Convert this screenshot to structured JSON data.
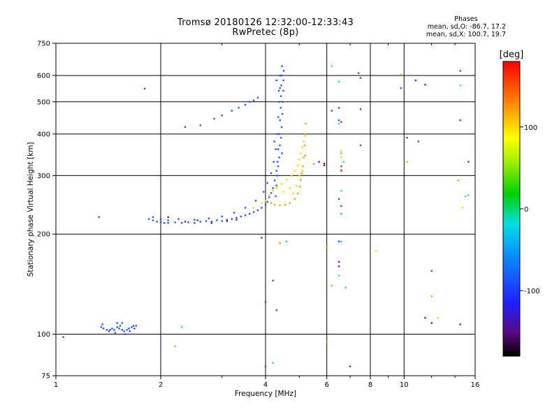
{
  "title": {
    "line1": "Tromsø 20180126 12:32:00-12:33:43",
    "line2": "RwPretec (8p)"
  },
  "phase_stats": {
    "heading": "Phases",
    "line_o": "mean, sd,O: -86.7, 17.2",
    "line_x": "mean, sd,X: 100.7, 19.7"
  },
  "colorbar": {
    "label": "[deg]",
    "ticks": [
      "100",
      "0",
      "-100"
    ],
    "range": [
      -180,
      180
    ]
  },
  "chart_data": {
    "type": "scatter",
    "xlabel": "Frequency [MHz]",
    "ylabel": "Stationary phase Virtual Height [km]",
    "xscale": "log",
    "yscale": "log",
    "xlim": [
      1,
      16
    ],
    "ylim": [
      75,
      750
    ],
    "xticks": [
      1,
      2,
      4,
      6,
      8,
      10,
      16
    ],
    "xtick_labels": [
      "1",
      "2",
      "4",
      "6",
      "8",
      "10",
      "16"
    ],
    "xminor": [
      3,
      5,
      7,
      9,
      12,
      14
    ],
    "yticks": [
      75,
      100,
      200,
      300,
      400,
      500,
      600,
      750
    ],
    "ytick_labels": [
      "75",
      "100",
      "200",
      "300",
      "400",
      "500",
      "600",
      "750"
    ],
    "grid": true,
    "series": [
      {
        "color": "#1f56ff",
        "points": [
          [
            1.35,
            105
          ],
          [
            1.37,
            104
          ],
          [
            1.4,
            103
          ],
          [
            1.43,
            103
          ],
          [
            1.45,
            104
          ],
          [
            1.47,
            103
          ],
          [
            1.5,
            105
          ],
          [
            1.52,
            104
          ],
          [
            1.55,
            103
          ],
          [
            1.57,
            102
          ],
          [
            1.6,
            103
          ],
          [
            1.62,
            104
          ],
          [
            1.65,
            105
          ],
          [
            1.68,
            104
          ],
          [
            1.7,
            106
          ],
          [
            1.36,
            107
          ],
          [
            1.42,
            102
          ],
          [
            1.48,
            101
          ],
          [
            1.53,
            106
          ],
          [
            1.58,
            100
          ],
          [
            1.63,
            102
          ],
          [
            1.67,
            106
          ],
          [
            1.55,
            108
          ],
          [
            1.5,
            108
          ],
          [
            1.85,
            222
          ],
          [
            1.9,
            220
          ],
          [
            1.95,
            218
          ],
          [
            2.0,
            217
          ],
          [
            2.05,
            216
          ],
          [
            2.1,
            216
          ],
          [
            2.2,
            217
          ],
          [
            2.3,
            216
          ],
          [
            2.4,
            217
          ],
          [
            2.5,
            216
          ],
          [
            2.6,
            218
          ],
          [
            2.7,
            219
          ],
          [
            2.8,
            218
          ],
          [
            2.9,
            220
          ],
          [
            3.0,
            219
          ],
          [
            3.1,
            221
          ],
          [
            3.2,
            222
          ],
          [
            3.3,
            224
          ],
          [
            3.4,
            226
          ],
          [
            3.5,
            228
          ],
          [
            3.6,
            230
          ],
          [
            3.7,
            233
          ],
          [
            3.8,
            236
          ],
          [
            3.9,
            240
          ],
          [
            4.0,
            245
          ],
          [
            4.05,
            250
          ],
          [
            4.1,
            258
          ],
          [
            4.15,
            266
          ],
          [
            4.2,
            275
          ],
          [
            4.25,
            290
          ],
          [
            4.3,
            310
          ],
          [
            4.33,
            330
          ],
          [
            4.35,
            360
          ],
          [
            4.38,
            400
          ],
          [
            4.4,
            440
          ],
          [
            4.42,
            480
          ],
          [
            4.43,
            520
          ],
          [
            4.44,
            560
          ],
          [
            4.45,
            600
          ],
          [
            4.46,
            640
          ],
          [
            1.9,
            225
          ],
          [
            2.0,
            222
          ],
          [
            2.1,
            220
          ],
          [
            2.25,
            222
          ],
          [
            2.5,
            221
          ],
          [
            2.75,
            223
          ],
          [
            3.0,
            226
          ],
          [
            3.25,
            232
          ],
          [
            3.5,
            240
          ],
          [
            3.75,
            252
          ],
          [
            3.95,
            268
          ],
          [
            4.05,
            285
          ],
          [
            4.15,
            305
          ],
          [
            4.22,
            330
          ],
          [
            4.28,
            360
          ],
          [
            4.32,
            400
          ],
          [
            4.35,
            450
          ],
          [
            4.38,
            500
          ],
          [
            4.4,
            550
          ],
          [
            4.42,
            600
          ],
          [
            2.6,
            425
          ],
          [
            2.85,
            445
          ],
          [
            3.0,
            455
          ],
          [
            3.2,
            470
          ],
          [
            3.35,
            480
          ],
          [
            3.5,
            490
          ],
          [
            3.6,
            500
          ],
          [
            3.7,
            505
          ],
          [
            3.8,
            515
          ],
          [
            4.28,
            260
          ],
          [
            4.3,
            280
          ],
          [
            4.32,
            300
          ],
          [
            4.35,
            320
          ],
          [
            4.38,
            340
          ],
          [
            4.4,
            370
          ],
          [
            4.43,
            390
          ],
          [
            4.45,
            420
          ],
          [
            4.47,
            460
          ],
          [
            4.48,
            500
          ],
          [
            4.5,
            540
          ],
          [
            4.5,
            580
          ],
          [
            4.51,
            620
          ],
          [
            4.4,
            600
          ],
          [
            4.3,
            580
          ],
          [
            4.37,
            540
          ],
          [
            4.46,
            350
          ],
          [
            4.24,
            380
          ],
          [
            1.8,
            548
          ],
          [
            2.35,
            420
          ],
          [
            1.05,
            98
          ],
          [
            1.33,
            225
          ],
          [
            4.0,
            125
          ],
          [
            4.0,
            80
          ],
          [
            4.2,
            145
          ],
          [
            4.3,
            118
          ],
          [
            6.2,
            470
          ],
          [
            6.5,
            480
          ],
          [
            6.6,
            320
          ],
          [
            6.5,
            440
          ],
          [
            6.5,
            255
          ],
          [
            6.6,
            243
          ],
          [
            6.6,
            230
          ],
          [
            6.5,
            190
          ],
          [
            7.5,
            475
          ],
          [
            7.5,
            370
          ],
          [
            7.5,
            590
          ],
          [
            7.4,
            610
          ],
          [
            10.2,
            390
          ],
          [
            11.0,
            380
          ],
          [
            12.0,
            155
          ],
          [
            14.5,
            440
          ],
          [
            15.3,
            330
          ],
          [
            9.8,
            550
          ]
        ]
      },
      {
        "color": "#7d0cc4",
        "points": [
          [
            2.1,
            225
          ],
          [
            2.35,
            218
          ],
          [
            2.55,
            220
          ],
          [
            2.8,
            216
          ],
          [
            3.1,
            219
          ],
          [
            3.3,
            221
          ],
          [
            6.5,
            165
          ],
          [
            6.5,
            160
          ],
          [
            11.5,
            112
          ],
          [
            12.0,
            108
          ],
          [
            14.5,
            107
          ],
          [
            11.5,
            563
          ],
          [
            10.8,
            580
          ],
          [
            7.0,
            80
          ],
          [
            3.9,
            195
          ],
          [
            5.9,
            322
          ],
          [
            5.9,
            326
          ],
          [
            5.7,
            330
          ]
        ]
      },
      {
        "color": "#ff9a10",
        "points": [
          [
            4.15,
            248
          ],
          [
            4.25,
            245
          ],
          [
            4.4,
            244
          ],
          [
            4.55,
            245
          ],
          [
            4.7,
            248
          ],
          [
            4.85,
            255
          ],
          [
            4.95,
            265
          ],
          [
            5.02,
            278
          ],
          [
            5.05,
            292
          ],
          [
            5.08,
            305
          ],
          [
            5.12,
            320
          ],
          [
            5.15,
            340
          ],
          [
            5.18,
            370
          ],
          [
            5.2,
            400
          ],
          [
            5.22,
            430
          ],
          [
            6.0,
            95
          ],
          [
            6.0,
            182
          ],
          [
            4.4,
            188
          ],
          [
            5.2,
            345
          ],
          [
            5.5,
            325
          ],
          [
            6.6,
            312
          ],
          [
            10.2,
            330
          ],
          [
            12.0,
            130
          ],
          [
            14.3,
            290
          ],
          [
            2.2,
            92
          ],
          [
            6.2,
            140
          ]
        ]
      },
      {
        "color": "#ffd400",
        "points": [
          [
            3.9,
            248
          ],
          [
            4.0,
            252
          ],
          [
            4.1,
            262
          ],
          [
            4.2,
            270
          ],
          [
            4.3,
            275
          ],
          [
            4.45,
            283
          ],
          [
            4.6,
            292
          ],
          [
            4.75,
            300
          ],
          [
            4.85,
            310
          ],
          [
            4.95,
            322
          ],
          [
            5.0,
            335
          ],
          [
            5.05,
            350
          ],
          [
            5.1,
            365
          ],
          [
            5.15,
            380
          ],
          [
            5.2,
            395
          ],
          [
            4.5,
            268
          ],
          [
            4.7,
            275
          ],
          [
            4.9,
            280
          ],
          [
            5.05,
            290
          ],
          [
            5.1,
            310
          ],
          [
            4.8,
            265
          ],
          [
            5.0,
            300
          ],
          [
            3.7,
            240
          ],
          [
            6.6,
            340
          ],
          [
            6.6,
            355
          ],
          [
            8.3,
            178
          ],
          [
            9.8,
            605
          ],
          [
            12.5,
            112
          ],
          [
            14.7,
            240
          ]
        ]
      },
      {
        "color": "#18d8e6",
        "points": [
          [
            6.2,
            640
          ],
          [
            6.5,
            575
          ],
          [
            6.5,
            430
          ],
          [
            6.6,
            270
          ],
          [
            6.6,
            230
          ],
          [
            6.6,
            190
          ],
          [
            2.3,
            105
          ],
          [
            4.2,
            82
          ],
          [
            4.6,
            190
          ],
          [
            14.5,
            560
          ],
          [
            15.0,
            260
          ],
          [
            6.8,
            138
          ],
          [
            6.5,
            150
          ]
        ]
      },
      {
        "color": "#3fe040",
        "points": [
          [
            6.6,
            350
          ],
          [
            6.7,
            330
          ],
          [
            15.3,
            262
          ]
        ]
      },
      {
        "color": "#e82020",
        "points": [
          [
            6.6,
            310
          ],
          [
            14.5,
            620
          ],
          [
            6.6,
            435
          ]
        ]
      }
    ]
  }
}
